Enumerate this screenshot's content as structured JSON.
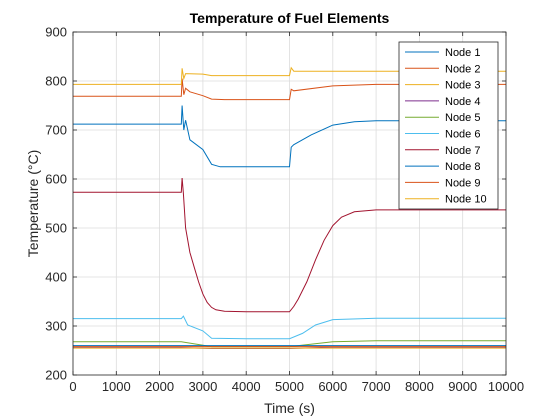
{
  "chart_data": {
    "type": "line",
    "title": "Temperature of Fuel Elements",
    "xlabel": "Time (s)",
    "ylabel": "Temperature (°C)",
    "xlim": [
      0,
      10000
    ],
    "ylim": [
      200,
      900
    ],
    "xticks": [
      "0",
      "1000",
      "2000",
      "3000",
      "4000",
      "5000",
      "6000",
      "7000",
      "8000",
      "9000",
      "10000"
    ],
    "yticks": [
      "200",
      "300",
      "400",
      "500",
      "600",
      "700",
      "800",
      "900"
    ],
    "grid": true,
    "legend_position": "top-right",
    "series": [
      {
        "name": "Node 1",
        "color": "#0072BD",
        "x": [
          0,
          2500,
          2520,
          2560,
          2600,
          2700,
          3000,
          3200,
          3400,
          4000,
          5000,
          5040,
          5100,
          5500,
          6000,
          6500,
          7000,
          10000
        ],
        "y": [
          712,
          712,
          750,
          700,
          720,
          680,
          660,
          630,
          625,
          625,
          625,
          665,
          670,
          690,
          710,
          717,
          719,
          719
        ]
      },
      {
        "name": "Node 2",
        "color": "#D95319",
        "x": [
          0,
          2500,
          2520,
          2560,
          2600,
          2700,
          3000,
          3200,
          3500,
          5000,
          5040,
          5100,
          6000,
          7000,
          10000
        ],
        "y": [
          769,
          769,
          805,
          772,
          785,
          778,
          770,
          763,
          762,
          762,
          783,
          780,
          790,
          793,
          793
        ]
      },
      {
        "name": "Node 3",
        "color": "#EDB120",
        "x": [
          0,
          2500,
          2520,
          2560,
          2600,
          3000,
          3200,
          5000,
          5040,
          5100,
          6000,
          7000,
          10000
        ],
        "y": [
          793,
          793,
          826,
          805,
          815,
          814,
          811,
          811,
          827,
          820,
          820,
          820,
          820
        ]
      },
      {
        "name": "Node 4",
        "color": "#7E2F8E",
        "x": [
          0,
          2500,
          3200,
          5000,
          6000,
          7000,
          10000
        ],
        "y": [
          256,
          256,
          254,
          254,
          257,
          257,
          257
        ]
      },
      {
        "name": "Node 5",
        "color": "#77AC30",
        "x": [
          0,
          2500,
          3200,
          5000,
          6000,
          7000,
          10000
        ],
        "y": [
          268,
          268,
          258,
          258,
          268,
          270,
          270
        ]
      },
      {
        "name": "Node 6",
        "color": "#4DBEEE",
        "x": [
          0,
          2500,
          2550,
          2650,
          3000,
          3200,
          4000,
          5000,
          5300,
          5600,
          6000,
          7000,
          10000
        ],
        "y": [
          315,
          315,
          320,
          302,
          290,
          275,
          274,
          274,
          285,
          302,
          313,
          316,
          316
        ]
      },
      {
        "name": "Node 7",
        "color": "#A2142F",
        "x": [
          0,
          2500,
          2520,
          2550,
          2600,
          2700,
          2800,
          2900,
          3000,
          3100,
          3200,
          3300,
          3500,
          4000,
          4500,
          5000,
          5100,
          5200,
          5400,
          5600,
          5800,
          6000,
          6200,
          6500,
          7000,
          10000
        ],
        "y": [
          573,
          573,
          602,
          570,
          500,
          450,
          420,
          390,
          365,
          348,
          338,
          333,
          330,
          329,
          329,
          329,
          340,
          355,
          390,
          435,
          475,
          505,
          522,
          533,
          537,
          537
        ]
      },
      {
        "name": "Node 8",
        "color": "#0072BD",
        "x": [
          0,
          10000
        ],
        "y": [
          260,
          260
        ]
      },
      {
        "name": "Node 9",
        "color": "#D95319",
        "x": [
          0,
          10000
        ],
        "y": [
          258,
          258
        ]
      },
      {
        "name": "Node 10",
        "color": "#EDB120",
        "x": [
          0,
          10000
        ],
        "y": [
          255,
          255
        ]
      }
    ]
  }
}
